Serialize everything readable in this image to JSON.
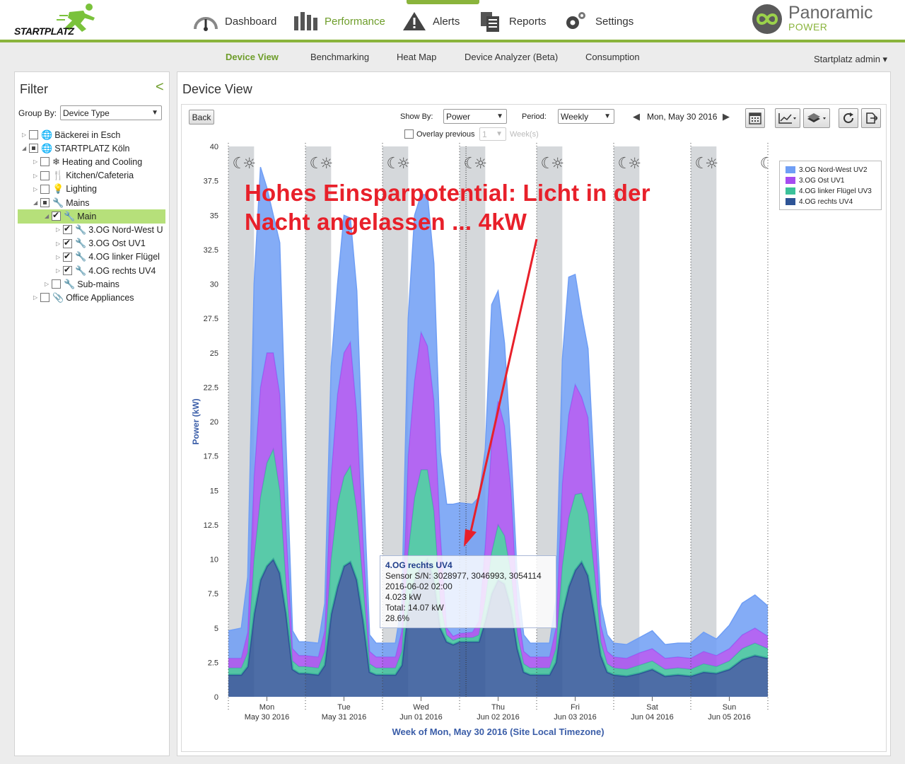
{
  "header": {
    "logo_text": "STARTPLATZ",
    "brand_name": "Panoramic",
    "brand_sub": "POWER",
    "nav": [
      {
        "label": "Dashboard",
        "icon": "gauge-icon"
      },
      {
        "label": "Performance",
        "icon": "bar-chart-icon",
        "active": true
      },
      {
        "label": "Alerts",
        "icon": "warning-icon"
      },
      {
        "label": "Reports",
        "icon": "report-icon"
      },
      {
        "label": "Settings",
        "icon": "gear-icon"
      }
    ]
  },
  "subnav": {
    "items": [
      "Device View",
      "Benchmarking",
      "Heat Map",
      "Device Analyzer (Beta)",
      "Consumption"
    ],
    "active": "Device View",
    "user": "Startplatz admin ▾"
  },
  "filter": {
    "title": "Filter",
    "collapse_icon": "<",
    "group_by_label": "Group By:",
    "group_by_value": "Device Type",
    "tree": [
      {
        "label": "Bäckerei in Esch",
        "level": 0,
        "state": "empty",
        "icon": "globe-icon",
        "glyph": "🌐"
      },
      {
        "label": "STARTPLATZ Köln",
        "level": 0,
        "state": "partial",
        "icon": "globe-icon",
        "glyph": "🌐",
        "open": true
      },
      {
        "label": "Heating and Cooling",
        "level": 1,
        "state": "empty",
        "icon": "snowflake-icon",
        "glyph": "❄"
      },
      {
        "label": "Kitchen/Cafeteria",
        "level": 1,
        "state": "empty",
        "icon": "cutlery-icon",
        "glyph": "🍴"
      },
      {
        "label": "Lighting",
        "level": 1,
        "state": "empty",
        "icon": "bulb-icon",
        "glyph": "💡"
      },
      {
        "label": "Mains",
        "level": 1,
        "state": "partial",
        "icon": "wrench-icon",
        "glyph": "🔧",
        "open": true
      },
      {
        "label": "Main",
        "level": 2,
        "state": "checked",
        "icon": "wrench-icon",
        "glyph": "🔧",
        "open": true,
        "selected": true
      },
      {
        "label": "3.OG Nord-West U",
        "level": 3,
        "state": "checked",
        "icon": "wrench-icon",
        "glyph": "🔧"
      },
      {
        "label": "3.OG Ost UV1",
        "level": 3,
        "state": "checked",
        "icon": "wrench-icon",
        "glyph": "🔧"
      },
      {
        "label": "4.OG linker Flügel",
        "level": 3,
        "state": "checked",
        "icon": "wrench-icon",
        "glyph": "🔧"
      },
      {
        "label": "4.OG rechts UV4",
        "level": 3,
        "state": "checked",
        "icon": "wrench-icon",
        "glyph": "🔧"
      },
      {
        "label": "Sub-mains",
        "level": 2,
        "state": "empty",
        "icon": "wrench-icon",
        "glyph": "🔧"
      },
      {
        "label": "Office Appliances",
        "level": 1,
        "state": "empty",
        "icon": "paperclip-icon",
        "glyph": "📎"
      }
    ]
  },
  "device_view": {
    "title": "Device View",
    "back_label": "Back",
    "show_by_label": "Show By:",
    "show_by_value": "Power",
    "period_label": "Period:",
    "period_value": "Weekly",
    "date_label": "Mon, May 30 2016",
    "overlay_label": "Overlay previous",
    "overlay_value": "1",
    "weeks_label": "Week(s)"
  },
  "annotation": {
    "line1": "Hohes Einsparpotential: Licht in der",
    "line2": "Nacht angelassen ...  4kW",
    "color": "#e8202a"
  },
  "tooltip": {
    "title": "4.OG rechts UV4",
    "sensor": "Sensor S/N: 3028977, 3046993, 3054114",
    "time": "2016-06-02 02:00",
    "value": "4.023 kW",
    "total": "Total: 14.07 kW",
    "percent": "28.6%"
  },
  "chart_data": {
    "type": "area",
    "stacked": true,
    "ylabel": "Power (kW)",
    "xlabel": "Week of Mon, May 30 2016 (Site Local Timezone)",
    "ylim": [
      0,
      40
    ],
    "yticks": [
      0,
      2.5,
      5,
      7.5,
      10,
      12.5,
      15,
      17.5,
      20,
      22.5,
      25,
      27.5,
      30,
      32.5,
      35,
      37.5,
      40
    ],
    "days": [
      {
        "day": "Mon",
        "date": "May 30 2016"
      },
      {
        "day": "Tue",
        "date": "May 31 2016"
      },
      {
        "day": "Wed",
        "date": "Jun 01 2016"
      },
      {
        "day": "Thu",
        "date": "Jun 02 2016"
      },
      {
        "day": "Fri",
        "date": "Jun 03 2016"
      },
      {
        "day": "Sat",
        "date": "Jun 04 2016"
      },
      {
        "day": "Sun",
        "date": "Jun 05 2016"
      }
    ],
    "x_hours": [
      0,
      4,
      6,
      8,
      10,
      12,
      14,
      16,
      18,
      20,
      22,
      24,
      28,
      30,
      32,
      34,
      36,
      38,
      40,
      42,
      44,
      46,
      48,
      52,
      54,
      56,
      58,
      60,
      62,
      64,
      66,
      68,
      70,
      72,
      76,
      78,
      80,
      82,
      84,
      86,
      88,
      90,
      92,
      94,
      96,
      100,
      102,
      104,
      106,
      108,
      110,
      112,
      114,
      116,
      118,
      120,
      124,
      128,
      132,
      136,
      140,
      144,
      148,
      152,
      156,
      160,
      164,
      168
    ],
    "series": [
      {
        "name": "4.OG rechts UV4",
        "color": "#2e5496",
        "values": [
          1.6,
          1.6,
          2.2,
          6,
          8.5,
          9.5,
          10,
          9,
          6,
          2,
          1.7,
          1.7,
          1.6,
          2.3,
          6,
          8,
          9.5,
          9.8,
          8.5,
          5.5,
          1.8,
          1.6,
          1.6,
          1.6,
          2.3,
          6.5,
          8.5,
          9.5,
          10,
          8.5,
          5,
          4,
          3.8,
          4,
          4,
          4,
          5.5,
          7.5,
          8.5,
          8.2,
          6.5,
          3.5,
          1.8,
          1.6,
          1.6,
          1.6,
          2.5,
          6,
          8,
          9.2,
          9.8,
          8.8,
          6,
          3,
          1.8,
          1.6,
          1.5,
          1.7,
          2,
          1.5,
          1.6,
          1.5,
          1.8,
          1.7,
          2,
          2.7,
          3,
          2.8
        ]
      },
      {
        "name": "4.OG linker Flügel UV3",
        "color": "#3cc19a",
        "values": [
          0.5,
          0.5,
          1,
          4,
          6,
          7.5,
          8,
          6,
          2,
          0.6,
          0.5,
          0.5,
          0.5,
          1,
          4,
          6,
          6.5,
          7,
          5,
          2.5,
          0.6,
          0.5,
          0.5,
          0.5,
          1,
          4,
          6,
          7,
          6.5,
          5,
          1.8,
          0.5,
          0.3,
          0.3,
          0.3,
          0.5,
          1.5,
          3,
          4,
          3.5,
          2.5,
          1,
          0.6,
          0.5,
          0.5,
          0.5,
          1,
          3.5,
          5,
          5.5,
          5,
          4.5,
          3,
          1,
          0.6,
          0.5,
          0.5,
          0.6,
          0.6,
          0.5,
          0.5,
          0.5,
          0.6,
          0.5,
          0.6,
          0.8,
          0.9,
          0.7
        ]
      },
      {
        "name": "3.OG Ost UV1",
        "color": "#a64cf0",
        "values": [
          0.7,
          0.7,
          1.5,
          6,
          8,
          8,
          7,
          7,
          4,
          0.9,
          0.8,
          0.8,
          0.8,
          1.5,
          6,
          8,
          9,
          9,
          7,
          3,
          0.9,
          0.8,
          0.8,
          0.8,
          1.5,
          7,
          8.5,
          10,
          9,
          8,
          5,
          0.5,
          0.3,
          0.3,
          0.4,
          1,
          4,
          8,
          9,
          8,
          6,
          2,
          0.9,
          0.8,
          0.8,
          0.8,
          1.5,
          6,
          7.5,
          8,
          7,
          7,
          4,
          1.2,
          0.9,
          0.8,
          0.8,
          0.9,
          0.9,
          0.8,
          0.8,
          0.8,
          0.9,
          0.8,
          0.9,
          1,
          1.1,
          0.9
        ]
      },
      {
        "name": "3.OG Nord-West UV2",
        "color": "#6f9ef5",
        "values": [
          2,
          2.2,
          4,
          14,
          16,
          12,
          10,
          11,
          6,
          1.3,
          1,
          1,
          1,
          2,
          8,
          8,
          10,
          9,
          9,
          5,
          1.2,
          1,
          1,
          1,
          2,
          10,
          12,
          10,
          11,
          10,
          6,
          9,
          9.6,
          9.5,
          9.3,
          9,
          7,
          10,
          8,
          6,
          3,
          2,
          1.2,
          1,
          1,
          1,
          2,
          9,
          10,
          8,
          6,
          5,
          3,
          1.5,
          1.2,
          1,
          1,
          1.1,
          1.3,
          1,
          1,
          1.1,
          1.4,
          1.2,
          1.7,
          2.3,
          2.4,
          2.2
        ]
      }
    ]
  }
}
